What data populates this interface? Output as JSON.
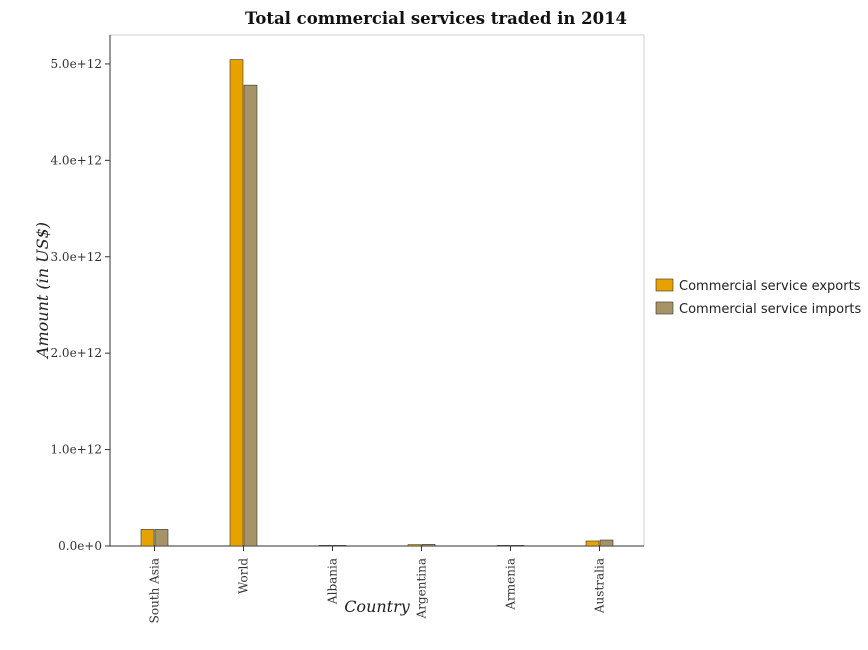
{
  "chart_data": {
    "type": "bar",
    "title": "Total commercial services traded in 2014",
    "xlabel": "Country",
    "ylabel": "Amount (in US$)",
    "categories": [
      "South Asia",
      "World",
      "Albania",
      "Argentina",
      "Armenia",
      "Australia"
    ],
    "series": [
      {
        "name": "Commercial service exports",
        "color": "#e8a200",
        "values": [
          172000000000,
          5045000000000,
          2800000000,
          14000000000,
          1500000000,
          52000000000
        ]
      },
      {
        "name": "Commercial service imports",
        "color": "#a69468",
        "values": [
          172000000000,
          4780000000000,
          2900000000,
          17000000000,
          1800000000,
          62000000000
        ]
      }
    ],
    "ylim": [
      0,
      5300000000000
    ],
    "yticks": [
      0,
      1000000000000,
      2000000000000,
      3000000000000,
      4000000000000,
      5000000000000
    ],
    "ytick_labels": [
      "0.0e+0",
      "1.0e+12",
      "2.0e+12",
      "3.0e+12",
      "4.0e+12",
      "5.0e+12"
    ],
    "grid": false,
    "legend_position": "right"
  }
}
